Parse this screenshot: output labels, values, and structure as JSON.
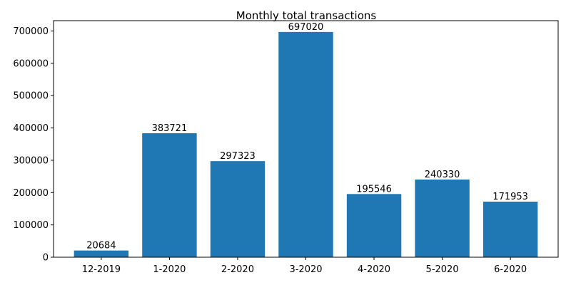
{
  "chart_data": {
    "type": "bar",
    "title": "Monthly total transactions",
    "xlabel": "",
    "ylabel": "",
    "categories": [
      "12-2019",
      "1-2020",
      "2-2020",
      "3-2020",
      "4-2020",
      "5-2020",
      "6-2020"
    ],
    "values": [
      20684,
      383721,
      297323,
      697020,
      195546,
      240330,
      171953
    ],
    "data_labels": [
      "20684",
      "383721",
      "297323",
      "697020",
      "195546",
      "240330",
      "171953"
    ],
    "ylim": [
      0,
      732000
    ],
    "yticks": [
      0,
      100000,
      200000,
      300000,
      400000,
      500000,
      600000,
      700000
    ],
    "ytick_labels": [
      "0",
      "100000",
      "200000",
      "300000",
      "400000",
      "500000",
      "600000",
      "700000"
    ],
    "grid": false,
    "legend": "none",
    "colors": {
      "bar": "#1f77b4",
      "axis": "#000000",
      "background": "#ffffff"
    }
  }
}
